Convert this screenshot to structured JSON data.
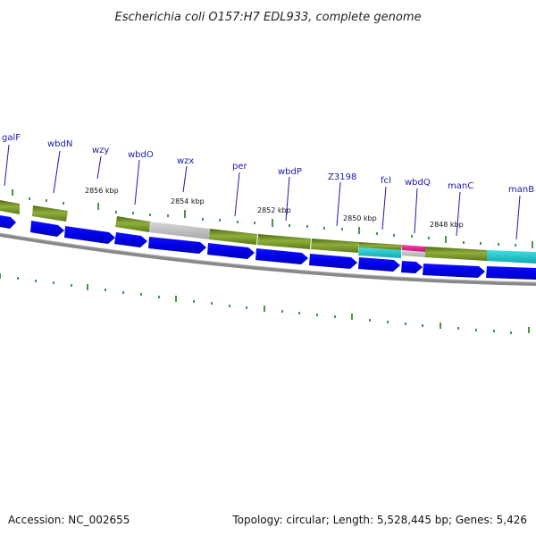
{
  "title": "Escherichia coli O157:H7 EDL933, complete genome",
  "footer": {
    "accession": "Accession: NC_002655",
    "info": "Topology: circular; Length: 5,528,445 bp; Genes: 5,426"
  },
  "colors": {
    "cds_forward": "#0000ee",
    "olive_feature": "#6b8e23",
    "gray_feature": "#bdbdbd",
    "cyan_feature": "#1ec8c8",
    "magenta_feature": "#e0208f",
    "tick": "#1a7a1a",
    "backbone": "#888888",
    "label": "#1a1aa8"
  },
  "genes": [
    "galF",
    "wbdN",
    "wzy",
    "wbdO",
    "wzx",
    "per",
    "wbdP",
    "Z3198",
    "fcl",
    "wbdQ",
    "manC",
    "manB"
  ],
  "scale_labels": [
    "2856 kbp",
    "2854 kbp",
    "2852 kbp",
    "2850 kbp",
    "2848 kbp"
  ]
}
